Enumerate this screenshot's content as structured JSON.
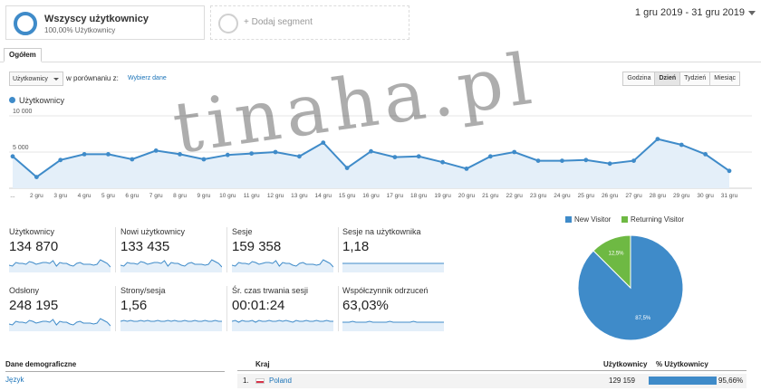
{
  "segments": {
    "active": {
      "title": "Wszyscy użytkownicy",
      "subtitle": "100,00% Użytkownicy"
    },
    "add_label": "+ Dodaj segment"
  },
  "date_range": "1 gru 2019 - 31 gru 2019",
  "tab": "Ogółem",
  "controls": {
    "metric": "Użytkownicy",
    "compare_label": "w porównaniu z:",
    "pick_link": "Wybierz dane",
    "granularity": [
      "Godzina",
      "Dzień",
      "Tydzień",
      "Miesiąc"
    ],
    "active_granularity": "Dzień"
  },
  "watermark": "tinaha.pl",
  "chart_data": {
    "type": "area",
    "series": [
      {
        "name": "Użytkownicy",
        "values": [
          4400,
          1550,
          3900,
          4700,
          4700,
          4000,
          5200,
          4700,
          4000,
          4600,
          4800,
          5000,
          4400,
          6300,
          2800,
          5100,
          4300,
          4400,
          3600,
          2700,
          4400,
          5000,
          3800,
          3800,
          3900,
          3400,
          3800,
          6800,
          6000,
          4700,
          2400
        ]
      }
    ],
    "x_labels": [
      "...",
      "2 gru",
      "3 gru",
      "4 gru",
      "5 gru",
      "6 gru",
      "7 gru",
      "8 gru",
      "9 gru",
      "10 gru",
      "11 gru",
      "12 gru",
      "13 gru",
      "14 gru",
      "15 gru",
      "16 gru",
      "17 gru",
      "18 gru",
      "19 gru",
      "20 gru",
      "21 gru",
      "22 gru",
      "23 gru",
      "24 gru",
      "25 gru",
      "26 gru",
      "27 gru",
      "28 gru",
      "29 gru",
      "30 gru",
      "31 gru"
    ],
    "y_ticks": [
      "10 000",
      "5 000"
    ],
    "ylim": [
      0,
      10000
    ],
    "color": "#3f8bc9"
  },
  "scorecards": [
    {
      "label": "Użytkownicy",
      "value": "134 870"
    },
    {
      "label": "Nowi użytkownicy",
      "value": "133 435"
    },
    {
      "label": "Sesje",
      "value": "159 358"
    },
    {
      "label": "Sesje na użytkownika",
      "value": "1,18"
    },
    {
      "label": "Odsłony",
      "value": "248 195"
    },
    {
      "label": "Strony/sesja",
      "value": "1,56"
    },
    {
      "label": "Śr. czas trwania sesji",
      "value": "00:01:24"
    },
    {
      "label": "Współczynnik odrzuceń",
      "value": "63,03%"
    }
  ],
  "pie": {
    "slices": [
      {
        "name": "New Visitor",
        "value": 87.5,
        "label": "87,5%",
        "color": "#3f8bc9"
      },
      {
        "name": "Returning Visitor",
        "value": 12.5,
        "label": "12,5%",
        "color": "#6eb943"
      }
    ]
  },
  "bottom": {
    "left_header": "Dane demograficzne",
    "left_row": "Język",
    "right_headers": {
      "country": "Kraj",
      "users": "Użytkownicy",
      "pct": "% Użytkownicy"
    },
    "rows": [
      {
        "rank": "1.",
        "country": "Poland",
        "users": "129 159",
        "pct": "95,66%",
        "fraction": 0.9566
      }
    ]
  }
}
